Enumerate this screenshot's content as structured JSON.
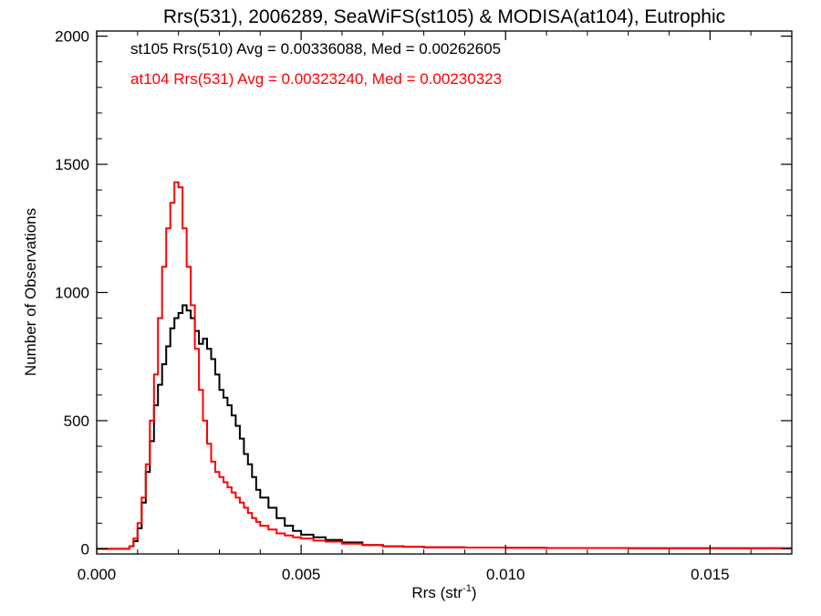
{
  "chart_data": {
    "type": "line",
    "title": "Rrs(531), 2006289, SeaWiFS(st105) & MODISA(at104), Eutrophic",
    "xlabel": "Rrs (str",
    "xlabel_sup": "-1",
    "xlabel_close": ")",
    "ylabel": "Number of Observations",
    "xlim": [
      0.0,
      0.017
    ],
    "ylim": [
      -20,
      2020
    ],
    "xticks": [
      {
        "value": 0.0,
        "label": "0.000"
      },
      {
        "value": 0.005,
        "label": "0.005"
      },
      {
        "value": 0.01,
        "label": "0.010"
      },
      {
        "value": 0.015,
        "label": "0.015"
      }
    ],
    "yticks": [
      {
        "value": 0,
        "label": "0"
      },
      {
        "value": 500,
        "label": "500"
      },
      {
        "value": 1000,
        "label": "1000"
      },
      {
        "value": 1500,
        "label": "1500"
      },
      {
        "value": 2000,
        "label": "2000"
      }
    ],
    "legend_position": "top-left",
    "series": [
      {
        "legend_label": "st105 Rrs(510) Avg = 0.00336088, Med = 0.00262605",
        "color": "#000000",
        "x": [
          0.0,
          0.0007,
          0.0008,
          0.0009,
          0.001,
          0.0011,
          0.0012,
          0.0013,
          0.0014,
          0.0015,
          0.0016,
          0.0017,
          0.0018,
          0.0019,
          0.002,
          0.0021,
          0.0022,
          0.0023,
          0.0024,
          0.0025,
          0.0026,
          0.0027,
          0.0028,
          0.0029,
          0.003,
          0.0031,
          0.0032,
          0.0033,
          0.0034,
          0.0035,
          0.0036,
          0.0037,
          0.0038,
          0.0039,
          0.004,
          0.0042,
          0.0044,
          0.0046,
          0.0048,
          0.005,
          0.0053,
          0.0056,
          0.006,
          0.0065,
          0.007,
          0.0075,
          0.008,
          0.009,
          0.01,
          0.011,
          0.012,
          0.013,
          0.014,
          0.015,
          0.016,
          0.017
        ],
        "y": [
          0,
          0,
          10,
          30,
          80,
          180,
          300,
          420,
          560,
          640,
          720,
          790,
          860,
          900,
          920,
          950,
          930,
          900,
          850,
          800,
          820,
          780,
          740,
          680,
          620,
          590,
          560,
          520,
          480,
          430,
          370,
          330,
          280,
          230,
          200,
          160,
          120,
          90,
          70,
          55,
          45,
          35,
          25,
          15,
          10,
          8,
          6,
          5,
          4,
          3,
          3,
          2,
          2,
          2,
          2,
          2
        ]
      },
      {
        "legend_label": "at104 Rrs(531) Avg = 0.00323240, Med = 0.00230323",
        "color": "#ff0000",
        "x": [
          0.0,
          0.0007,
          0.0008,
          0.0009,
          0.001,
          0.0011,
          0.0012,
          0.0013,
          0.0014,
          0.0015,
          0.0016,
          0.0017,
          0.0018,
          0.0019,
          0.002,
          0.0021,
          0.0022,
          0.0023,
          0.0024,
          0.0025,
          0.0026,
          0.0027,
          0.0028,
          0.0029,
          0.003,
          0.0031,
          0.0032,
          0.0033,
          0.0034,
          0.0035,
          0.0036,
          0.0037,
          0.0038,
          0.0039,
          0.004,
          0.0042,
          0.0044,
          0.0046,
          0.0048,
          0.005,
          0.0053,
          0.0056,
          0.006,
          0.0065,
          0.007,
          0.0075,
          0.008,
          0.009,
          0.01,
          0.011,
          0.012,
          0.013,
          0.014,
          0.015,
          0.016,
          0.017
        ],
        "y": [
          0,
          0,
          10,
          40,
          100,
          200,
          330,
          500,
          680,
          900,
          1100,
          1250,
          1350,
          1430,
          1410,
          1250,
          1100,
          950,
          780,
          620,
          500,
          410,
          340,
          300,
          280,
          260,
          240,
          220,
          200,
          180,
          160,
          140,
          120,
          105,
          90,
          75,
          60,
          52,
          45,
          40,
          32,
          28,
          20,
          15,
          10,
          8,
          6,
          5,
          4,
          3,
          3,
          2,
          2,
          2,
          2,
          2
        ]
      }
    ]
  }
}
